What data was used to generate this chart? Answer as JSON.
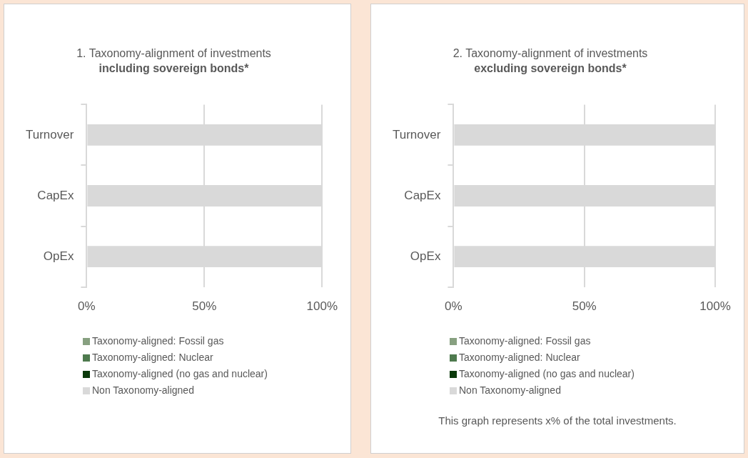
{
  "chart_data": [
    {
      "type": "bar",
      "orientation": "horizontal",
      "stacked": true,
      "title": "1. Taxonomy-alignment of investments",
      "subtitle": "including sovereign bonds*",
      "categories": [
        "Turnover",
        "CapEx",
        "OpEx"
      ],
      "series": [
        {
          "name": "Taxonomy-aligned: Fossil gas",
          "color": "#87a080",
          "values": [
            0,
            0,
            0
          ]
        },
        {
          "name": "Taxonomy-aligned: Nuclear",
          "color": "#4e7a4e",
          "values": [
            0,
            0,
            0
          ]
        },
        {
          "name": "Taxonomy-aligned (no gas and nuclear)",
          "color": "#0b3a0b",
          "values": [
            0,
            0,
            0
          ]
        },
        {
          "name": "Non Taxonomy-aligned",
          "color": "#d9d9d9",
          "values": [
            100,
            100,
            100
          ]
        }
      ],
      "xlim": [
        0,
        100
      ],
      "xticks": [
        {
          "value": 0,
          "label": "0%"
        },
        {
          "value": 50,
          "label": "50%"
        },
        {
          "value": 100,
          "label": "100%"
        }
      ],
      "grid": "x",
      "legend": "bottom"
    },
    {
      "type": "bar",
      "orientation": "horizontal",
      "stacked": true,
      "title": "2. Taxonomy-alignment of investments",
      "subtitle": "excluding sovereign bonds*",
      "categories": [
        "Turnover",
        "CapEx",
        "OpEx"
      ],
      "series": [
        {
          "name": "Taxonomy-aligned: Fossil gas",
          "color": "#87a080",
          "values": [
            0,
            0,
            0
          ]
        },
        {
          "name": "Taxonomy-aligned: Nuclear",
          "color": "#4e7a4e",
          "values": [
            0,
            0,
            0
          ]
        },
        {
          "name": "Taxonomy-aligned (no gas and nuclear)",
          "color": "#0b3a0b",
          "values": [
            0,
            0,
            0
          ]
        },
        {
          "name": "Non Taxonomy-aligned",
          "color": "#d9d9d9",
          "values": [
            100,
            100,
            100
          ]
        }
      ],
      "xlim": [
        0,
        100
      ],
      "xticks": [
        {
          "value": 0,
          "label": "0%"
        },
        {
          "value": 50,
          "label": "50%"
        },
        {
          "value": 100,
          "label": "100%"
        }
      ],
      "grid": "x",
      "legend": "bottom",
      "annotations": [
        "This graph represents x% of the total investments."
      ]
    }
  ]
}
